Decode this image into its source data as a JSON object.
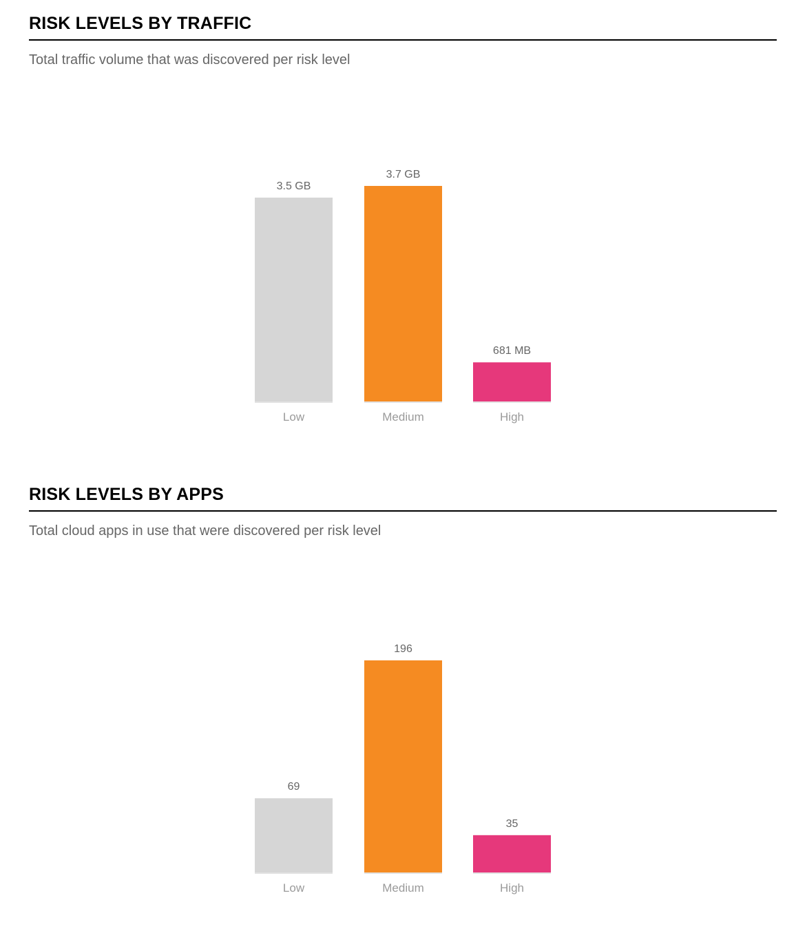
{
  "colors": {
    "low": "#d6d6d6",
    "medium": "#f58b22",
    "high": "#e6387b",
    "baseline": "#e2e2e2"
  },
  "sections": [
    {
      "title": "RISK LEVELS BY TRAFFIC",
      "subtitle": "Total traffic volume that was discovered per risk level"
    },
    {
      "title": "RISK LEVELS BY APPS",
      "subtitle": "Total cloud apps in use that were discovered per risk level"
    }
  ],
  "chart_data": [
    {
      "type": "bar",
      "title": "RISK LEVELS BY TRAFFIC",
      "subtitle": "Total traffic volume that was discovered per risk level",
      "categories": [
        "Low",
        "Medium",
        "High"
      ],
      "values": [
        3500,
        3700,
        681
      ],
      "value_unit": "MB",
      "data_labels": [
        "3.5 GB",
        "3.7 GB",
        "681 MB"
      ],
      "xlabel": "",
      "ylabel": "",
      "grid": false,
      "ylim": [
        0,
        3700
      ]
    },
    {
      "type": "bar",
      "title": "RISK LEVELS BY APPS",
      "subtitle": "Total cloud apps in use that were discovered per risk level",
      "categories": [
        "Low",
        "Medium",
        "High"
      ],
      "values": [
        69,
        196,
        35
      ],
      "data_labels": [
        "69",
        "196",
        "35"
      ],
      "xlabel": "",
      "ylabel": "",
      "grid": false,
      "ylim": [
        0,
        196
      ]
    }
  ]
}
